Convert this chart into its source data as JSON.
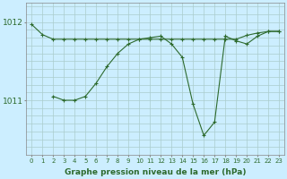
{
  "background_color": "#cceeff",
  "grid_color": "#aacccc",
  "line_color": "#2d6a2d",
  "xlabel": "Graphe pression niveau de la mer (hPa)",
  "yticks": [
    1011,
    1012
  ],
  "xlim": [
    -0.5,
    23.5
  ],
  "ylim": [
    1010.3,
    1012.25
  ],
  "series1_x": [
    0,
    1,
    2,
    3,
    4,
    5,
    6,
    7,
    8,
    9,
    10,
    11,
    12,
    13,
    14,
    15,
    16,
    17,
    18,
    19,
    20,
    21,
    22,
    23
  ],
  "series1_y": [
    1011.97,
    1011.84,
    1011.78,
    1011.78,
    1011.78,
    1011.78,
    1011.78,
    1011.78,
    1011.78,
    1011.78,
    1011.78,
    1011.78,
    1011.78,
    1011.78,
    1011.78,
    1011.78,
    1011.78,
    1011.78,
    1011.78,
    1011.78,
    1011.83,
    1011.86,
    1011.88,
    1011.88
  ],
  "series2_x": [
    2,
    3,
    4,
    5,
    6,
    7,
    8,
    9,
    10,
    11,
    12,
    13,
    14,
    15,
    16,
    17,
    18,
    19,
    20,
    21,
    22,
    23
  ],
  "series2_y": [
    1011.05,
    1011.0,
    1011.0,
    1011.05,
    1011.22,
    1011.43,
    1011.6,
    1011.72,
    1011.78,
    1011.8,
    1011.82,
    1011.72,
    1011.55,
    1010.95,
    1010.55,
    1010.72,
    1011.82,
    1011.76,
    1011.72,
    1011.82,
    1011.88,
    1011.88
  ],
  "xtick_labels": [
    "0",
    "1",
    "2",
    "3",
    "4",
    "5",
    "6",
    "7",
    "8",
    "9",
    "10",
    "11",
    "12",
    "13",
    "14",
    "15",
    "16",
    "17",
    "18",
    "19",
    "20",
    "21",
    "22",
    "23"
  ]
}
